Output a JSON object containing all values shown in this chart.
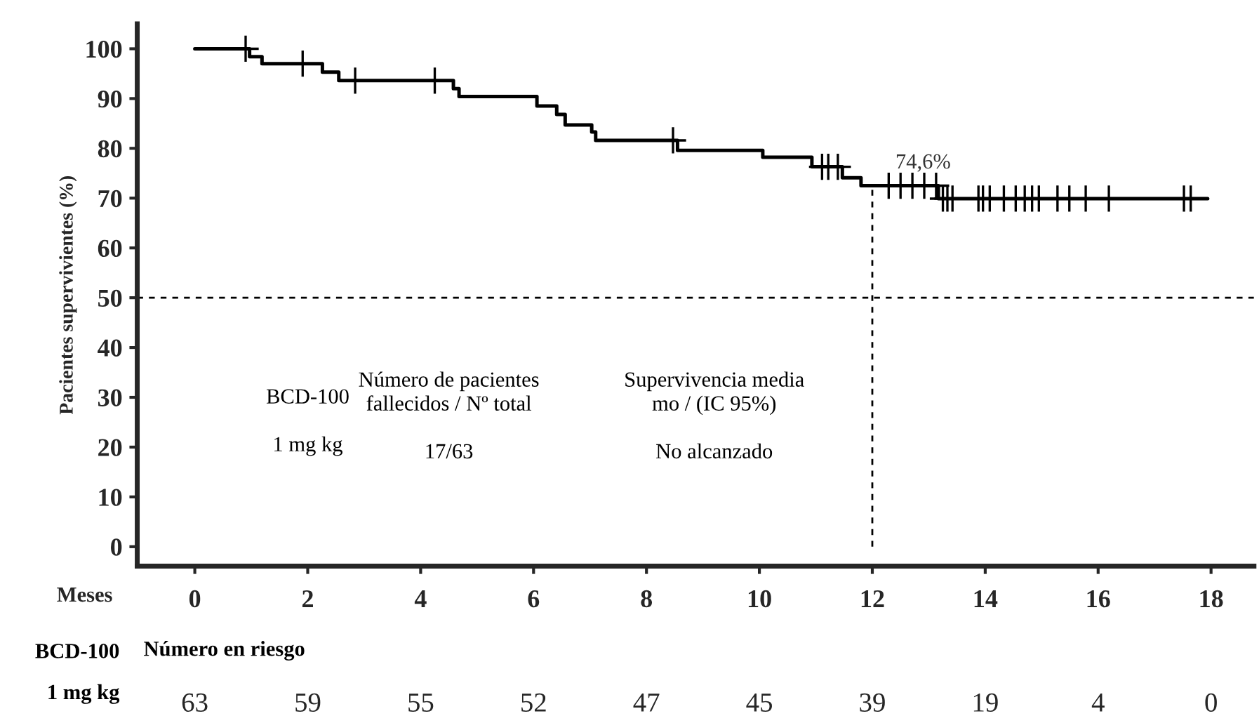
{
  "chart_data": {
    "type": "step",
    "ylabel": "Pacientes supervivientes (%)",
    "xlabel": "Meses",
    "xlim": [
      -1.02,
      18.76
    ],
    "ylim": [
      -3.9,
      105
    ],
    "xticks": [
      0,
      2,
      4,
      6,
      8,
      10,
      12,
      14,
      16,
      18
    ],
    "yticks": [
      0,
      10,
      20,
      30,
      40,
      50,
      60,
      70,
      80,
      90,
      100
    ],
    "grid": false,
    "legend": false,
    "series": [
      {
        "color": "#000000",
        "x": [
          0,
          0.97,
          1.19,
          2.26,
          2.55,
          4.58,
          4.68,
          6.06,
          6.41,
          6.56,
          7.03,
          7.1,
          8.55,
          10.06,
          10.93,
          11.47,
          11.8,
          13.17,
          17.94
        ],
        "values": [
          100,
          98.4,
          97,
          95.3,
          93.6,
          92,
          90.4,
          88.5,
          86.8,
          84.7,
          83.3,
          81.6,
          79.6,
          78.2,
          76.3,
          74.1,
          72.5,
          69.9,
          69.9
        ]
      },
      {
        "type": "scatter",
        "color": "#000000",
        "marker": "cross",
        "x": [
          0.9,
          1.91,
          2.84,
          4.25,
          8.47,
          11.11,
          11.22,
          11.39,
          12.29,
          12.5,
          12.71,
          12.92,
          13.13,
          13.25,
          13.33,
          13.42,
          13.88,
          13.96,
          14.08,
          14.33,
          14.54,
          14.7,
          14.83,
          14.95,
          15.28,
          15.49,
          15.78,
          16.19,
          17.52,
          17.64
        ],
        "values": [
          100,
          97,
          93.6,
          93.6,
          81.6,
          76.3,
          76.3,
          76.3,
          72.5,
          72.5,
          72.5,
          72.5,
          72.5,
          69.9,
          69.9,
          69.9,
          69.9,
          69.9,
          69.9,
          69.9,
          69.9,
          69.9,
          69.9,
          69.9,
          69.9,
          69.9,
          69.9,
          69.9,
          69.9,
          69.9
        ]
      }
    ],
    "ref_lines": [
      {
        "axis": "y",
        "value": 50,
        "line_style": "dashed"
      },
      {
        "axis": "x",
        "value": 12,
        "line_style": "dashed"
      }
    ],
    "annotations": [
      "74,6%",
      "BCD-100\n\n1 mg kg",
      "Número de pacientes\nfallecidos / Nº total\n\n17/63",
      "Supervivencia media\nmo / (IC 95%)\n\nNo alcanzado",
      "BCD-100",
      "Número en riesgo",
      "1 mg kg",
      "63",
      "59",
      "55",
      "52",
      "47",
      "45",
      "39",
      "19",
      "4",
      "0"
    ]
  }
}
